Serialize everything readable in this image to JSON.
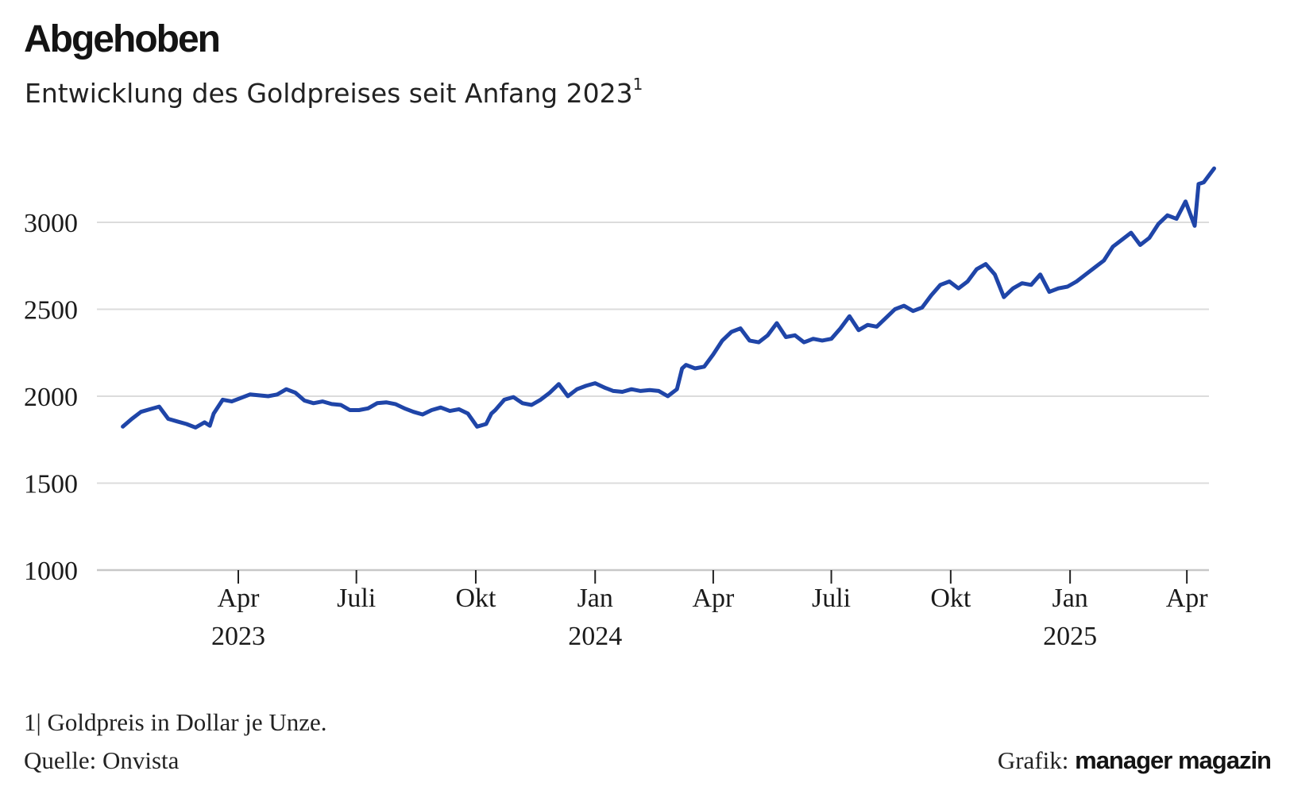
{
  "title": "Abgehoben",
  "subtitle": "Entwicklung des Goldpreises seit Anfang 2023",
  "subtitle_footnote_mark": "1",
  "footnote": "1| Goldpreis in Dollar je Unze.",
  "source": "Quelle: Onvista",
  "credit_prefix": "Grafik:",
  "credit_brand": "manager magazin",
  "colors": {
    "line": "#1f45a8",
    "grid": "#dcdcdc",
    "axis": "#c8c8c8",
    "text": "#1a1a1a"
  },
  "chart_data": {
    "type": "line",
    "title": "Abgehoben",
    "subtitle": "Entwicklung des Goldpreises seit Anfang 2023",
    "ylim": [
      1000,
      3300
    ],
    "yticks": [
      1000,
      1500,
      2000,
      2500,
      3000
    ],
    "grid": true,
    "legend": "none",
    "xlim": [
      "2023-01-02",
      "2025-04-22"
    ],
    "xticks": [
      {
        "date": "2023-04-01",
        "label": "Apr",
        "year": "2023"
      },
      {
        "date": "2023-07-01",
        "label": "Juli",
        "year": ""
      },
      {
        "date": "2023-10-01",
        "label": "Okt",
        "year": ""
      },
      {
        "date": "2024-01-01",
        "label": "Jan",
        "year": "2024"
      },
      {
        "date": "2024-04-01",
        "label": "Apr",
        "year": ""
      },
      {
        "date": "2024-07-01",
        "label": "Juli",
        "year": ""
      },
      {
        "date": "2024-10-01",
        "label": "Okt",
        "year": ""
      },
      {
        "date": "2025-01-01",
        "label": "Jan",
        "year": "2025"
      },
      {
        "date": "2025-04-01",
        "label": "Apr",
        "year": ""
      }
    ],
    "series": [
      {
        "points": [
          [
            "2023-01-02",
            1825
          ],
          [
            "2023-01-09",
            1870
          ],
          [
            "2023-01-16",
            1910
          ],
          [
            "2023-01-23",
            1925
          ],
          [
            "2023-01-30",
            1940
          ],
          [
            "2023-02-06",
            1870
          ],
          [
            "2023-02-13",
            1855
          ],
          [
            "2023-02-20",
            1840
          ],
          [
            "2023-02-27",
            1820
          ],
          [
            "2023-03-06",
            1850
          ],
          [
            "2023-03-10",
            1830
          ],
          [
            "2023-03-13",
            1900
          ],
          [
            "2023-03-20",
            1980
          ],
          [
            "2023-03-27",
            1970
          ],
          [
            "2023-04-03",
            1990
          ],
          [
            "2023-04-10",
            2010
          ],
          [
            "2023-04-17",
            2005
          ],
          [
            "2023-04-24",
            2000
          ],
          [
            "2023-05-01",
            2010
          ],
          [
            "2023-05-08",
            2040
          ],
          [
            "2023-05-15",
            2020
          ],
          [
            "2023-05-22",
            1975
          ],
          [
            "2023-05-29",
            1960
          ],
          [
            "2023-06-05",
            1970
          ],
          [
            "2023-06-12",
            1955
          ],
          [
            "2023-06-19",
            1950
          ],
          [
            "2023-06-26",
            1920
          ],
          [
            "2023-07-03",
            1920
          ],
          [
            "2023-07-10",
            1930
          ],
          [
            "2023-07-17",
            1960
          ],
          [
            "2023-07-24",
            1965
          ],
          [
            "2023-07-31",
            1955
          ],
          [
            "2023-08-07",
            1930
          ],
          [
            "2023-08-14",
            1910
          ],
          [
            "2023-08-21",
            1895
          ],
          [
            "2023-08-28",
            1920
          ],
          [
            "2023-09-04",
            1935
          ],
          [
            "2023-09-11",
            1915
          ],
          [
            "2023-09-18",
            1925
          ],
          [
            "2023-09-25",
            1900
          ],
          [
            "2023-10-02",
            1825
          ],
          [
            "2023-10-09",
            1840
          ],
          [
            "2023-10-13",
            1900
          ],
          [
            "2023-10-16",
            1920
          ],
          [
            "2023-10-23",
            1980
          ],
          [
            "2023-10-30",
            1995
          ],
          [
            "2023-11-06",
            1960
          ],
          [
            "2023-11-13",
            1950
          ],
          [
            "2023-11-20",
            1980
          ],
          [
            "2023-11-27",
            2020
          ],
          [
            "2023-12-04",
            2070
          ],
          [
            "2023-12-11",
            2000
          ],
          [
            "2023-12-18",
            2040
          ],
          [
            "2023-12-25",
            2060
          ],
          [
            "2024-01-01",
            2075
          ],
          [
            "2024-01-08",
            2050
          ],
          [
            "2024-01-15",
            2030
          ],
          [
            "2024-01-22",
            2025
          ],
          [
            "2024-01-29",
            2040
          ],
          [
            "2024-02-05",
            2030
          ],
          [
            "2024-02-12",
            2035
          ],
          [
            "2024-02-19",
            2030
          ],
          [
            "2024-02-26",
            2000
          ],
          [
            "2024-03-04",
            2040
          ],
          [
            "2024-03-08",
            2160
          ],
          [
            "2024-03-11",
            2180
          ],
          [
            "2024-03-18",
            2160
          ],
          [
            "2024-03-25",
            2170
          ],
          [
            "2024-04-01",
            2240
          ],
          [
            "2024-04-08",
            2320
          ],
          [
            "2024-04-15",
            2370
          ],
          [
            "2024-04-22",
            2390
          ],
          [
            "2024-04-29",
            2320
          ],
          [
            "2024-05-06",
            2310
          ],
          [
            "2024-05-13",
            2350
          ],
          [
            "2024-05-20",
            2420
          ],
          [
            "2024-05-27",
            2340
          ],
          [
            "2024-06-03",
            2350
          ],
          [
            "2024-06-10",
            2310
          ],
          [
            "2024-06-17",
            2330
          ],
          [
            "2024-06-24",
            2320
          ],
          [
            "2024-07-01",
            2330
          ],
          [
            "2024-07-08",
            2390
          ],
          [
            "2024-07-15",
            2460
          ],
          [
            "2024-07-22",
            2380
          ],
          [
            "2024-07-29",
            2410
          ],
          [
            "2024-08-05",
            2400
          ],
          [
            "2024-08-12",
            2450
          ],
          [
            "2024-08-19",
            2500
          ],
          [
            "2024-08-26",
            2520
          ],
          [
            "2024-09-02",
            2490
          ],
          [
            "2024-09-09",
            2510
          ],
          [
            "2024-09-16",
            2580
          ],
          [
            "2024-09-23",
            2640
          ],
          [
            "2024-09-30",
            2660
          ],
          [
            "2024-10-07",
            2620
          ],
          [
            "2024-10-14",
            2660
          ],
          [
            "2024-10-21",
            2730
          ],
          [
            "2024-10-28",
            2760
          ],
          [
            "2024-11-04",
            2700
          ],
          [
            "2024-11-11",
            2570
          ],
          [
            "2024-11-18",
            2620
          ],
          [
            "2024-11-25",
            2650
          ],
          [
            "2024-12-02",
            2640
          ],
          [
            "2024-12-09",
            2700
          ],
          [
            "2024-12-16",
            2600
          ],
          [
            "2024-12-23",
            2620
          ],
          [
            "2024-12-30",
            2630
          ],
          [
            "2025-01-06",
            2660
          ],
          [
            "2025-01-13",
            2700
          ],
          [
            "2025-01-20",
            2740
          ],
          [
            "2025-01-27",
            2780
          ],
          [
            "2025-02-03",
            2860
          ],
          [
            "2025-02-10",
            2900
          ],
          [
            "2025-02-17",
            2940
          ],
          [
            "2025-02-24",
            2870
          ],
          [
            "2025-03-03",
            2910
          ],
          [
            "2025-03-10",
            2990
          ],
          [
            "2025-03-17",
            3040
          ],
          [
            "2025-03-24",
            3020
          ],
          [
            "2025-03-31",
            3120
          ],
          [
            "2025-04-07",
            2980
          ],
          [
            "2025-04-10",
            3220
          ],
          [
            "2025-04-14",
            3230
          ],
          [
            "2025-04-22",
            3310
          ]
        ]
      }
    ]
  }
}
